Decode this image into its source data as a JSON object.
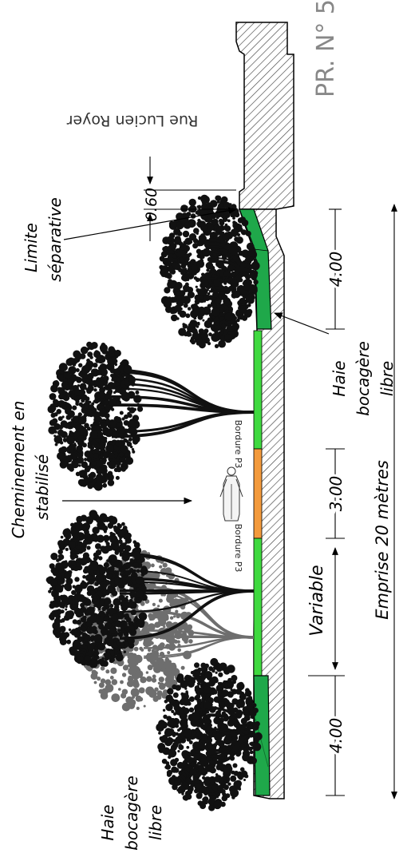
{
  "title": "PR. N° 5",
  "street": "Rue Lucien Royer",
  "dimensions": {
    "offset": "0.60",
    "hedge_right": "4.00",
    "path": "3.00",
    "variable": "Variable",
    "hedge_left": "4.00",
    "emprise": "Emprise 20 mètres"
  },
  "labels": {
    "limite": [
      "Limite",
      "séparative"
    ],
    "cheminement": [
      "Cheminement en",
      "stabilisé"
    ],
    "bordure": "Bordure P3",
    "haie_right": [
      "Haie",
      "bocagère",
      "libre"
    ],
    "haie_left": [
      "Haie",
      "bocagère",
      "libre"
    ]
  },
  "colors": {
    "hedge_strip": "#1fa84a",
    "grass": "#3fd93f",
    "stabilise_path": "#f39a3c",
    "hatch": "#444444",
    "tree_dark": "#111111",
    "tree_grey": "#6e6e6e"
  },
  "icons": [
    "pedestrian-icon"
  ]
}
